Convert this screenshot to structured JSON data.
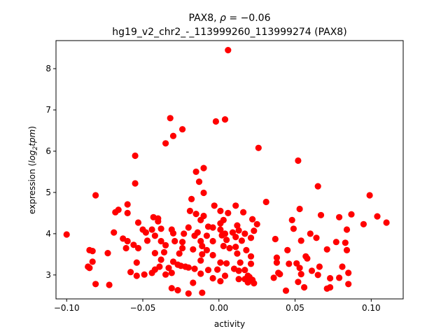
{
  "chart_data": {
    "type": "scatter",
    "title_line1_prefix": "PAX8, ",
    "title_rho_symbol": "ρ",
    "title_rho_value": " = −0.06",
    "title_line2": "hg19_v2_chr2_-_113999260_113999274 (PAX8)",
    "xlabel": "activity",
    "ylabel_prefix": "expression (",
    "ylabel_log": "log",
    "ylabel_sub": "2",
    "ylabel_tpm": "tpm",
    "ylabel_suffix": ")",
    "xlim": [
      -0.107,
      0.121
    ],
    "ylim": [
      2.42,
      8.68
    ],
    "xticks": [
      {
        "value": -0.1,
        "label": "−0.10"
      },
      {
        "value": -0.05,
        "label": "−0.05"
      },
      {
        "value": 0.0,
        "label": "0.00"
      },
      {
        "value": 0.05,
        "label": "0.05"
      },
      {
        "value": 0.1,
        "label": "0.10"
      }
    ],
    "yticks": [
      {
        "value": 3,
        "label": "3"
      },
      {
        "value": 4,
        "label": "4"
      },
      {
        "value": 5,
        "label": "5"
      },
      {
        "value": 6,
        "label": "6"
      },
      {
        "value": 7,
        "label": "7"
      },
      {
        "value": 8,
        "label": "8"
      }
    ],
    "marker_color": "#ff0000",
    "grid": false,
    "points": [
      [
        0.006,
        8.45
      ],
      [
        -0.032,
        6.8
      ],
      [
        0.004,
        6.77
      ],
      [
        -0.002,
        6.72
      ],
      [
        -0.024,
        6.53
      ],
      [
        -0.03,
        6.37
      ],
      [
        -0.035,
        6.19
      ],
      [
        0.026,
        6.08
      ],
      [
        -0.055,
        5.89
      ],
      [
        0.052,
        5.77
      ],
      [
        -0.01,
        5.59
      ],
      [
        -0.015,
        5.5
      ],
      [
        -0.013,
        5.26
      ],
      [
        -0.055,
        5.22
      ],
      [
        0.065,
        5.15
      ],
      [
        -0.01,
        4.99
      ],
      [
        -0.081,
        4.93
      ],
      [
        0.099,
        4.93
      ],
      [
        -0.018,
        4.84
      ],
      [
        0.031,
        4.77
      ],
      [
        -0.06,
        4.71
      ],
      [
        -0.003,
        4.68
      ],
      [
        0.011,
        4.68
      ],
      [
        0.053,
        4.6
      ],
      [
        -0.066,
        4.58
      ],
      [
        -0.068,
        4.52
      ],
      [
        -0.019,
        4.55
      ],
      [
        -0.015,
        4.48
      ],
      [
        0.006,
        4.5
      ],
      [
        0.016,
        4.52
      ],
      [
        0.001,
        4.55
      ],
      [
        -0.06,
        4.5
      ],
      [
        0.067,
        4.45
      ],
      [
        0.087,
        4.47
      ],
      [
        0.079,
        4.4
      ],
      [
        0.104,
        4.42
      ],
      [
        -0.043,
        4.4
      ],
      [
        -0.01,
        4.43
      ],
      [
        -0.04,
        4.37
      ],
      [
        -0.012,
        4.33
      ],
      [
        0.003,
        4.33
      ],
      [
        0.022,
        4.35
      ],
      [
        0.048,
        4.33
      ],
      [
        -0.053,
        4.27
      ],
      [
        -0.04,
        4.3
      ],
      [
        0.001,
        4.25
      ],
      [
        0.025,
        4.23
      ],
      [
        0.11,
        4.27
      ],
      [
        0.095,
        4.23
      ],
      [
        0.012,
        4.2
      ],
      [
        -0.02,
        4.15
      ],
      [
        -0.007,
        4.17
      ],
      [
        -0.004,
        4.15
      ],
      [
        -0.05,
        4.1
      ],
      [
        -0.044,
        4.1
      ],
      [
        -0.038,
        4.12
      ],
      [
        -0.031,
        4.1
      ],
      [
        0.001,
        4.1
      ],
      [
        0.013,
        4.08
      ],
      [
        0.023,
        4.07
      ],
      [
        0.049,
        4.12
      ],
      [
        0.084,
        4.1
      ],
      [
        -0.069,
        4.03
      ],
      [
        -0.048,
        4.03
      ],
      [
        -0.03,
        4.01
      ],
      [
        -0.023,
        4.0
      ],
      [
        -0.014,
        4.03
      ],
      [
        0.004,
        4.0
      ],
      [
        0.009,
        4.03
      ],
      [
        0.017,
        4.0
      ],
      [
        0.06,
        4.0
      ],
      [
        0.064,
        3.9
      ],
      [
        -0.1,
        3.98
      ],
      [
        -0.042,
        3.95
      ],
      [
        -0.016,
        3.95
      ],
      [
        -0.008,
        3.95
      ],
      [
        0.002,
        3.96
      ],
      [
        0.011,
        3.92
      ],
      [
        0.021,
        3.9
      ],
      [
        -0.063,
        3.88
      ],
      [
        -0.06,
        3.82
      ],
      [
        -0.047,
        3.83
      ],
      [
        -0.038,
        3.82
      ],
      [
        -0.029,
        3.82
      ],
      [
        -0.024,
        3.8
      ],
      [
        -0.012,
        3.82
      ],
      [
        -0.004,
        3.82
      ],
      [
        0.005,
        3.85
      ],
      [
        0.015,
        3.83
      ],
      [
        0.037,
        3.87
      ],
      [
        0.054,
        3.83
      ],
      [
        0.077,
        3.8
      ],
      [
        0.083,
        3.78
      ],
      [
        -0.056,
        3.73
      ],
      [
        -0.035,
        3.72
      ],
      [
        -0.011,
        3.7
      ],
      [
        0.003,
        3.7
      ],
      [
        0.011,
        3.68
      ],
      [
        -0.085,
        3.6
      ],
      [
        -0.083,
        3.58
      ],
      [
        -0.061,
        3.65
      ],
      [
        -0.053,
        3.65
      ],
      [
        -0.024,
        3.65
      ],
      [
        -0.017,
        3.62
      ],
      [
        -0.008,
        3.6
      ],
      [
        0.007,
        3.65
      ],
      [
        0.018,
        3.6
      ],
      [
        0.045,
        3.6
      ],
      [
        0.071,
        3.62
      ],
      [
        0.084,
        3.6
      ],
      [
        -0.073,
        3.53
      ],
      [
        -0.042,
        3.53
      ],
      [
        -0.036,
        3.55
      ],
      [
        -0.026,
        3.52
      ],
      [
        -0.011,
        3.5
      ],
      [
        -0.004,
        3.48
      ],
      [
        0.012,
        3.52
      ],
      [
        0.021,
        3.45
      ],
      [
        0.038,
        3.42
      ],
      [
        0.057,
        3.45
      ],
      [
        0.058,
        3.4
      ],
      [
        -0.083,
        3.32
      ],
      [
        -0.054,
        3.3
      ],
      [
        -0.038,
        3.37
      ],
      [
        -0.03,
        3.32
      ],
      [
        -0.012,
        3.35
      ],
      [
        0.001,
        3.3
      ],
      [
        0.005,
        3.28
      ],
      [
        0.014,
        3.3
      ],
      [
        0.021,
        3.27
      ],
      [
        0.038,
        3.3
      ],
      [
        0.046,
        3.27
      ],
      [
        0.051,
        3.28
      ],
      [
        -0.086,
        3.2
      ],
      [
        -0.085,
        3.17
      ],
      [
        -0.042,
        3.13
      ],
      [
        -0.039,
        3.2
      ],
      [
        -0.033,
        3.17
      ],
      [
        -0.027,
        3.25
      ],
      [
        -0.025,
        3.22
      ],
      [
        -0.022,
        3.2
      ],
      [
        -0.02,
        3.18
      ],
      [
        -0.016,
        3.15
      ],
      [
        -0.007,
        3.12
      ],
      [
        -0.001,
        3.13
      ],
      [
        0.01,
        3.15
      ],
      [
        0.013,
        3.1
      ],
      [
        0.017,
        3.12
      ],
      [
        0.053,
        3.17
      ],
      [
        0.061,
        3.1
      ],
      [
        0.066,
        3.2
      ],
      [
        0.081,
        3.2
      ],
      [
        -0.058,
        3.07
      ],
      [
        -0.044,
        3.05
      ],
      [
        -0.031,
        3.05
      ],
      [
        -0.012,
        3.03
      ],
      [
        0.004,
        2.98
      ],
      [
        0.019,
        2.98
      ],
      [
        0.02,
        2.95
      ],
      [
        0.039,
        3.05
      ],
      [
        0.04,
        3.02
      ],
      [
        0.054,
        3.02
      ],
      [
        0.065,
        3.0
      ],
      [
        0.073,
        2.92
      ],
      [
        0.079,
        2.93
      ],
      [
        0.085,
        3.05
      ],
      [
        -0.054,
        2.98
      ],
      [
        -0.049,
        3.01
      ],
      [
        -0.035,
        3.01
      ],
      [
        -0.004,
        2.92
      ],
      [
        0.017,
        2.9
      ],
      [
        0.022,
        2.88
      ],
      [
        0.013,
        2.9
      ],
      [
        0.036,
        2.93
      ],
      [
        -0.081,
        2.78
      ],
      [
        -0.072,
        2.76
      ],
      [
        -0.017,
        2.81
      ],
      [
        0.001,
        2.85
      ],
      [
        0.019,
        2.82
      ],
      [
        0.023,
        2.8
      ],
      [
        0.052,
        2.83
      ],
      [
        0.056,
        2.7
      ],
      [
        0.073,
        2.7
      ],
      [
        0.085,
        2.78
      ],
      [
        -0.031,
        2.68
      ],
      [
        -0.027,
        2.63
      ],
      [
        -0.011,
        2.57
      ],
      [
        -0.02,
        2.55
      ],
      [
        0.044,
        2.62
      ],
      [
        0.071,
        2.67
      ]
    ]
  }
}
